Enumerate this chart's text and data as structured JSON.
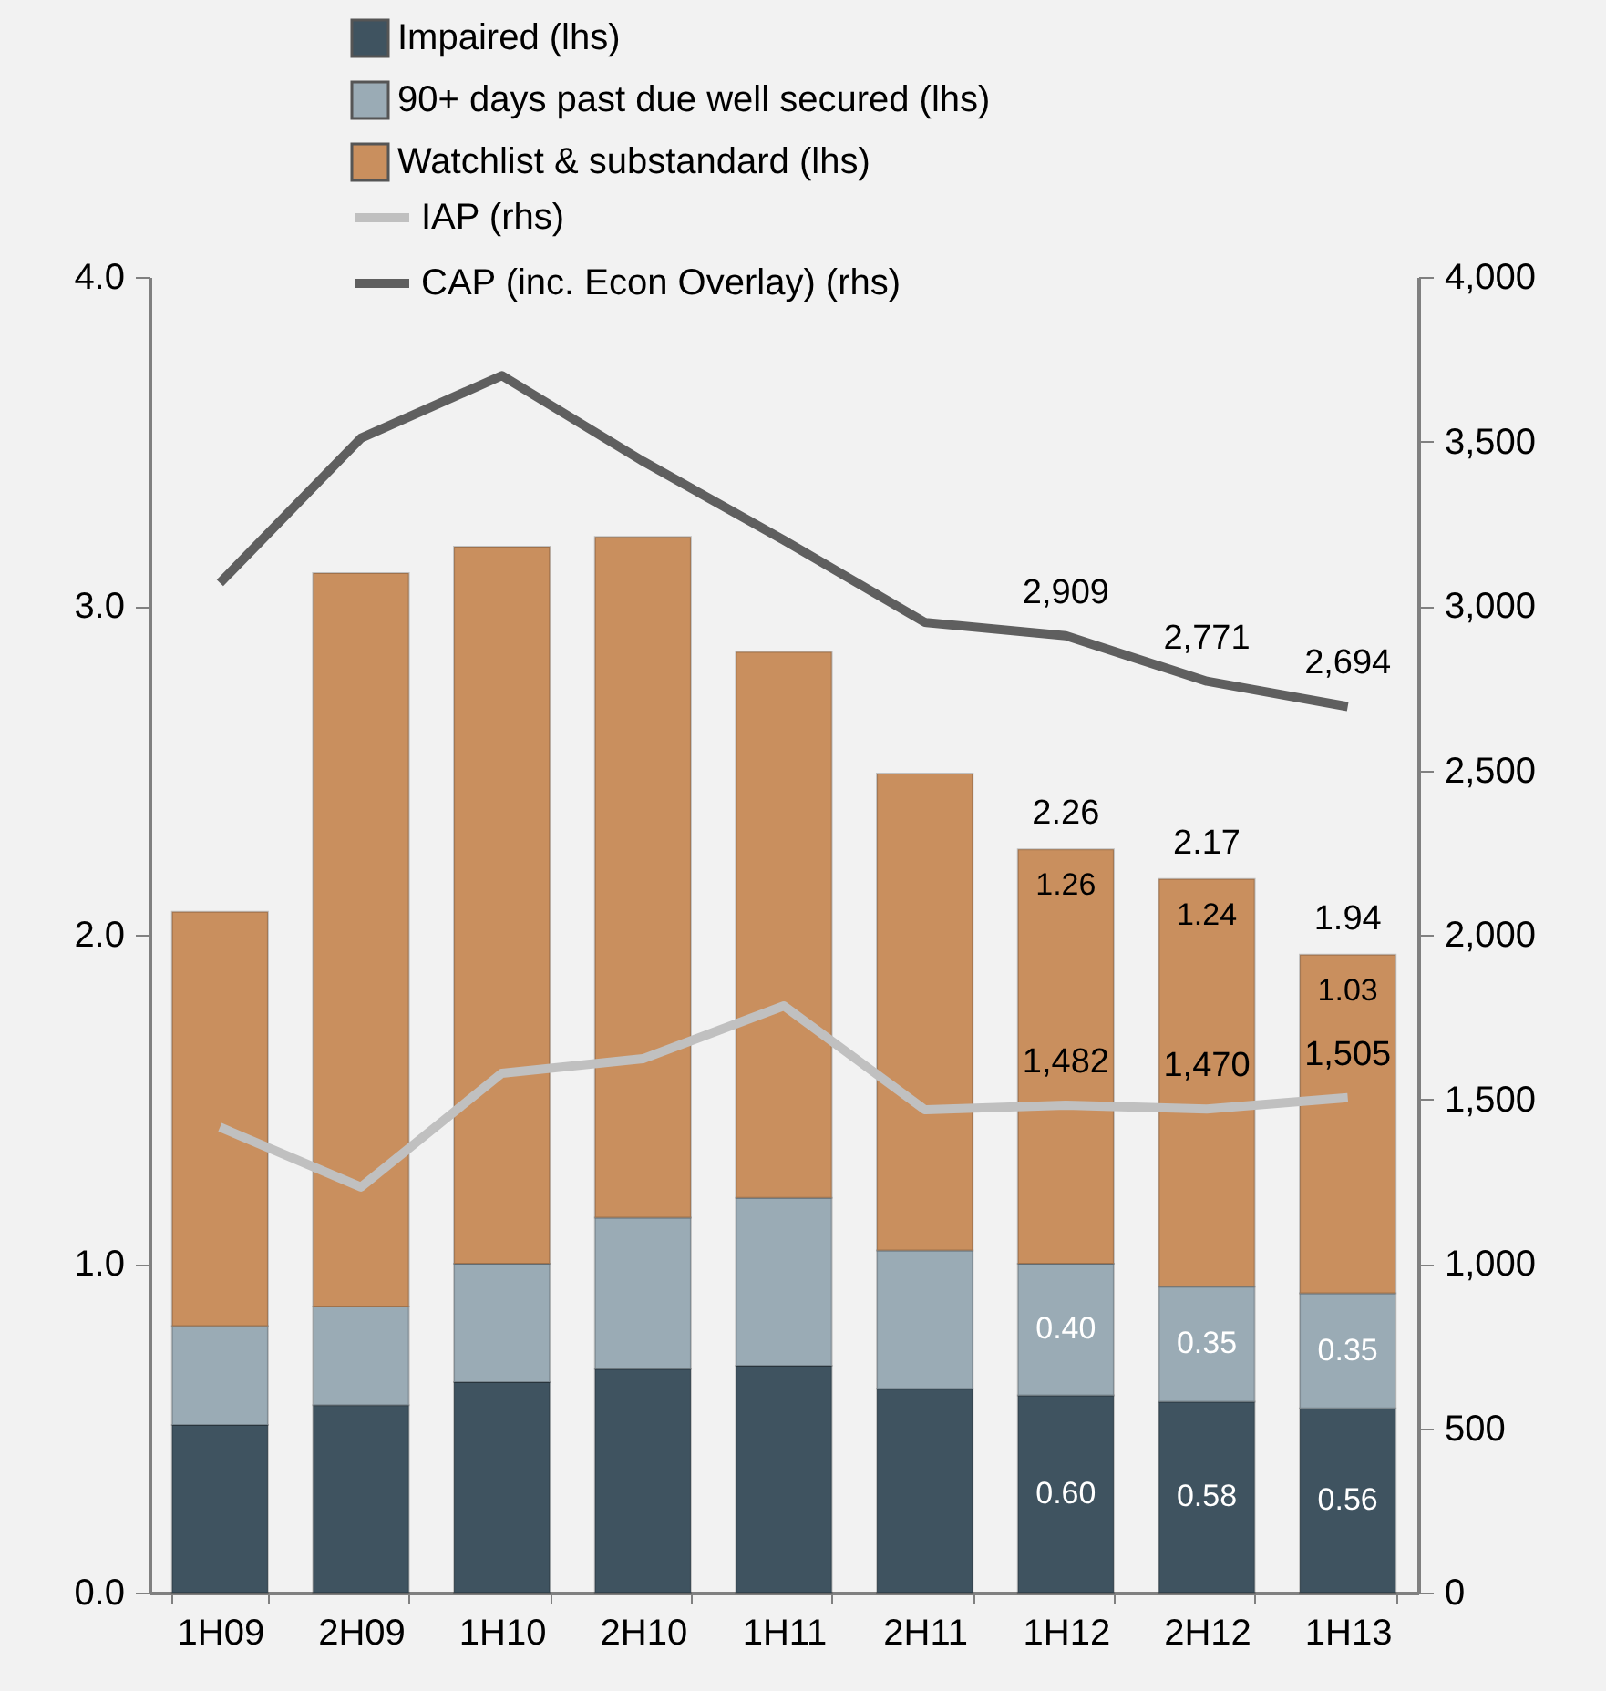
{
  "chart_data": {
    "type": "bar",
    "stacked": true,
    "legend": "top",
    "categories": [
      "1H09",
      "2H09",
      "1H10",
      "2H10",
      "1H11",
      "2H11",
      "1H12",
      "2H12",
      "1H13"
    ],
    "ylim": [
      0,
      4
    ],
    "yticks": [
      {
        "value": 0,
        "label": "0.0"
      },
      {
        "value": 1,
        "label": "1.0"
      },
      {
        "value": 2,
        "label": "2.0"
      },
      {
        "value": 3,
        "label": "3.0"
      },
      {
        "value": 4,
        "label": "4.0"
      }
    ],
    "y2lim": [
      0,
      4000
    ],
    "y2ticks": [
      0,
      500,
      {
        "value": 1000,
        "label": "1,000"
      },
      {
        "value": 1500,
        "label": "1,500"
      },
      {
        "value": 2000,
        "label": "2,000"
      },
      {
        "value": 2500,
        "label": "2,500"
      },
      {
        "value": 3000,
        "label": "3,000"
      },
      {
        "value": 3500,
        "label": "3,500"
      },
      {
        "value": 4000,
        "label": "4,000"
      }
    ],
    "series": [
      {
        "name": "Impaired (lhs)",
        "color": "#3f5360",
        "values": [
          0.51,
          0.57,
          0.64,
          0.68,
          0.69,
          0.62,
          0.6,
          0.58,
          0.56
        ],
        "value_labels": [
          null,
          null,
          null,
          null,
          null,
          null,
          "0.60",
          "0.58",
          "0.56"
        ]
      },
      {
        "name": "90+ days past due well secured (lhs)",
        "color": "#9aabb5",
        "values": [
          0.3,
          0.3,
          0.36,
          0.46,
          0.51,
          0.42,
          0.4,
          0.35,
          0.35
        ],
        "value_labels": [
          null,
          null,
          null,
          null,
          null,
          null,
          "0.40",
          "0.35",
          "0.35"
        ]
      },
      {
        "name": "Watchlist & substandard (lhs)",
        "color": "#c98f5e",
        "values": [
          1.26,
          2.23,
          2.18,
          2.07,
          1.66,
          1.45,
          1.26,
          1.24,
          1.03
        ],
        "value_labels": [
          null,
          null,
          null,
          null,
          null,
          null,
          "1.26",
          "1.24",
          "1.03"
        ]
      },
      {
        "name": "IAP (rhs)",
        "type": "line",
        "axis": "y2",
        "color": "#c0c0c0",
        "values": [
          1415,
          1233,
          1579,
          1623,
          1784,
          1468,
          1482,
          1470,
          1505
        ],
        "value_labels": [
          null,
          null,
          null,
          null,
          null,
          null,
          "1,482",
          "1,470",
          "1,505"
        ]
      },
      {
        "name": "CAP (inc. Econ Overlay) (rhs)",
        "type": "line",
        "axis": "y2",
        "color": "#5f5f5f",
        "values": [
          3070,
          3510,
          3700,
          3440,
          3200,
          2950,
          2909,
          2771,
          2694
        ],
        "value_labels": [
          null,
          null,
          null,
          null,
          null,
          null,
          "2,909",
          "2,771",
          "2,694"
        ]
      }
    ],
    "totals": [
      null,
      null,
      null,
      null,
      null,
      null,
      "2.26",
      "2.17",
      "1.94"
    ]
  }
}
